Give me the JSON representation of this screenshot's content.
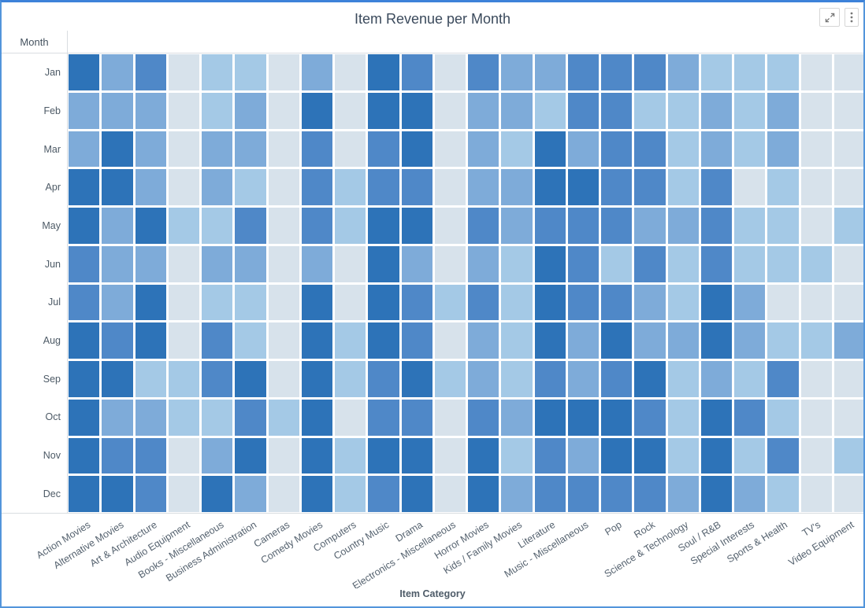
{
  "header": {
    "title": "Item Revenue per Month"
  },
  "toolbar": {
    "fullscreen_icon": "expand-diagonal-arrows",
    "menu_icon": "vertical-ellipsis"
  },
  "chart_data": {
    "type": "heatmap",
    "title": "Item Revenue per Month",
    "xlabel": "Item Category",
    "ylabel": "Month",
    "legend": "none",
    "grid": "white gaps between cells",
    "rows": [
      "Jan",
      "Feb",
      "Mar",
      "Apr",
      "May",
      "Jun",
      "Jul",
      "Aug",
      "Sep",
      "Oct",
      "Nov",
      "Dec"
    ],
    "categories": [
      "Action Movies",
      "Alternative Movies",
      "Art & Architecture",
      "Audio Equipment",
      "Books - Miscellaneous",
      "Business Administration",
      "Cameras",
      "Comedy Movies",
      "Computers",
      "Country Music",
      "Drama",
      "Electronics - Miscellaneous",
      "Horror Movies",
      "Kids / Family Movies",
      "Literature",
      "Music - Miscellaneous",
      "Pop",
      "Rock",
      "Science & Technology",
      "Soul / R&B",
      "Special Interests",
      "Sports & Health",
      "TV's",
      "Video Equipment"
    ],
    "intensity_scale_note": "revenue intensity levels 1 (lowest) to 5 (highest), read from cell shading",
    "palette": {
      "1": "#d7e2eb",
      "2": "#a4c9e6",
      "3": "#7eabd9",
      "4": "#4f88c8",
      "5": "#2d73b8"
    },
    "values": [
      [
        5,
        3,
        4,
        1,
        2,
        2,
        1,
        3,
        1,
        5,
        4,
        1,
        4,
        3,
        3,
        4,
        4,
        4,
        3,
        2,
        2,
        2,
        1,
        1
      ],
      [
        3,
        3,
        3,
        1,
        2,
        3,
        1,
        5,
        1,
        5,
        5,
        1,
        3,
        3,
        2,
        4,
        4,
        2,
        2,
        3,
        2,
        3,
        1,
        1
      ],
      [
        3,
        5,
        3,
        1,
        3,
        3,
        1,
        4,
        1,
        4,
        5,
        1,
        3,
        2,
        5,
        3,
        4,
        4,
        2,
        3,
        2,
        3,
        1,
        1
      ],
      [
        5,
        5,
        3,
        1,
        3,
        2,
        1,
        4,
        2,
        4,
        4,
        1,
        3,
        3,
        5,
        5,
        4,
        4,
        2,
        4,
        1,
        2,
        1,
        1
      ],
      [
        5,
        3,
        5,
        2,
        2,
        4,
        1,
        4,
        2,
        5,
        5,
        1,
        4,
        3,
        4,
        4,
        4,
        3,
        3,
        4,
        2,
        2,
        1,
        2
      ],
      [
        4,
        3,
        3,
        1,
        3,
        3,
        1,
        3,
        1,
        5,
        3,
        1,
        3,
        2,
        5,
        4,
        2,
        4,
        2,
        4,
        2,
        2,
        2,
        1
      ],
      [
        4,
        3,
        5,
        1,
        2,
        2,
        1,
        5,
        1,
        5,
        4,
        2,
        4,
        2,
        5,
        4,
        4,
        3,
        2,
        5,
        3,
        1,
        1,
        1
      ],
      [
        5,
        4,
        5,
        1,
        4,
        2,
        1,
        5,
        2,
        5,
        4,
        1,
        3,
        2,
        5,
        3,
        5,
        3,
        3,
        5,
        3,
        2,
        2,
        3
      ],
      [
        5,
        5,
        2,
        2,
        4,
        5,
        1,
        5,
        2,
        4,
        5,
        2,
        3,
        2,
        4,
        3,
        4,
        5,
        2,
        3,
        2,
        4,
        1,
        1
      ],
      [
        5,
        3,
        3,
        2,
        2,
        4,
        2,
        5,
        1,
        4,
        4,
        1,
        4,
        3,
        5,
        5,
        5,
        4,
        2,
        5,
        4,
        2,
        1,
        1
      ],
      [
        5,
        4,
        4,
        1,
        3,
        5,
        1,
        5,
        2,
        5,
        5,
        1,
        5,
        2,
        4,
        3,
        5,
        5,
        2,
        5,
        2,
        4,
        1,
        2
      ],
      [
        5,
        5,
        4,
        1,
        5,
        3,
        1,
        5,
        2,
        4,
        5,
        1,
        5,
        3,
        4,
        4,
        4,
        4,
        3,
        5,
        3,
        2,
        1,
        1
      ]
    ]
  },
  "colors": {
    "card_background": "#ffffff",
    "card_border": "#5295db",
    "card_border_top": "#3d82d9",
    "title_text": "#3b4a5c",
    "axis_label_text": "#55626f",
    "gridline_rule": "#d9dde1"
  }
}
